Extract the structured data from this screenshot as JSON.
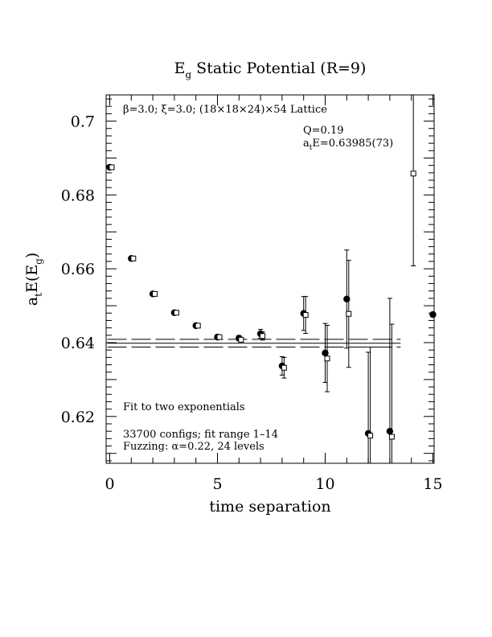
{
  "chart_data": {
    "type": "scatter",
    "title": {
      "main": "E",
      "sub": "g",
      "rest": " Static Potential (R=9)"
    },
    "xlabel": "time separation",
    "ylabel": {
      "a": "a",
      "a_sub": "t",
      "mid": "E(E",
      "sub": "g",
      "end": ")"
    },
    "xlim": [
      0,
      15
    ],
    "ylim": [
      0.607,
      0.707
    ],
    "x_ticks": [
      0,
      5,
      10,
      15
    ],
    "y_ticks": [
      0.62,
      0.64,
      0.66,
      0.68,
      0.7
    ],
    "y_tick_labels": [
      "0.62",
      "0.64",
      "0.66",
      "0.68",
      "0.7"
    ],
    "series": [
      {
        "marker": "filled-circle",
        "points": [
          {
            "x": 0,
            "y": 0.6875,
            "err": 0.0003
          },
          {
            "x": 1,
            "y": 0.6628,
            "err": 0.0003
          },
          {
            "x": 2,
            "y": 0.6532,
            "err": 0.0003
          },
          {
            "x": 3,
            "y": 0.6481,
            "err": 0.0004
          },
          {
            "x": 4,
            "y": 0.6446,
            "err": 0.0004
          },
          {
            "x": 5,
            "y": 0.6415,
            "err": 0.0005
          },
          {
            "x": 6,
            "y": 0.6412,
            "err": 0.0007
          },
          {
            "x": 7,
            "y": 0.6424,
            "err": 0.0012
          },
          {
            "x": 8,
            "y": 0.6337,
            "err": 0.0025
          },
          {
            "x": 9,
            "y": 0.6479,
            "err": 0.0046
          },
          {
            "x": 10,
            "y": 0.6372,
            "err": 0.008
          },
          {
            "x": 11,
            "y": 0.6518,
            "err": 0.0133
          },
          {
            "x": 12,
            "y": 0.6154,
            "err": 0.022
          },
          {
            "x": 13,
            "y": 0.616,
            "err": 0.036
          },
          {
            "x": 15,
            "y": 0.6476,
            "err": 0.0001
          }
        ]
      },
      {
        "marker": "open-square",
        "points": [
          {
            "x": 0,
            "y": 0.6875,
            "err": 0.0002
          },
          {
            "x": 1,
            "y": 0.6628,
            "err": 0.0002
          },
          {
            "x": 2,
            "y": 0.6532,
            "err": 0.0002
          },
          {
            "x": 3,
            "y": 0.6481,
            "err": 0.0003
          },
          {
            "x": 4,
            "y": 0.6446,
            "err": 0.0003
          },
          {
            "x": 5,
            "y": 0.6415,
            "err": 0.0004
          },
          {
            "x": 6,
            "y": 0.6408,
            "err": 0.0006
          },
          {
            "x": 7,
            "y": 0.6418,
            "err": 0.0011
          },
          {
            "x": 8,
            "y": 0.6332,
            "err": 0.0028
          },
          {
            "x": 9,
            "y": 0.6475,
            "err": 0.005
          },
          {
            "x": 10,
            "y": 0.6357,
            "err": 0.009
          },
          {
            "x": 11,
            "y": 0.6478,
            "err": 0.0145
          },
          {
            "x": 12,
            "y": 0.6148,
            "err": 0.024
          },
          {
            "x": 13,
            "y": 0.6145,
            "err": 0.0305
          },
          {
            "x": 14,
            "y": 0.6858,
            "err": 0.025
          }
        ]
      }
    ],
    "fit": {
      "x_range": [
        1,
        14
      ],
      "central": 0.63985,
      "error": 0.00073
    },
    "annotations": {
      "lattice": "β=3.0; ξ=3.0; (18×18×24)×54 Lattice",
      "q_value": "Q=0.19",
      "energy_prefix": "a",
      "energy_sub": "t",
      "energy_rest": "E=0.63985(73)",
      "fit_method": "Fit to two exponentials",
      "configs": "33700 configs; fit range 1–14",
      "fuzzing": "Fuzzing: α=0.22, 24 levels"
    }
  }
}
